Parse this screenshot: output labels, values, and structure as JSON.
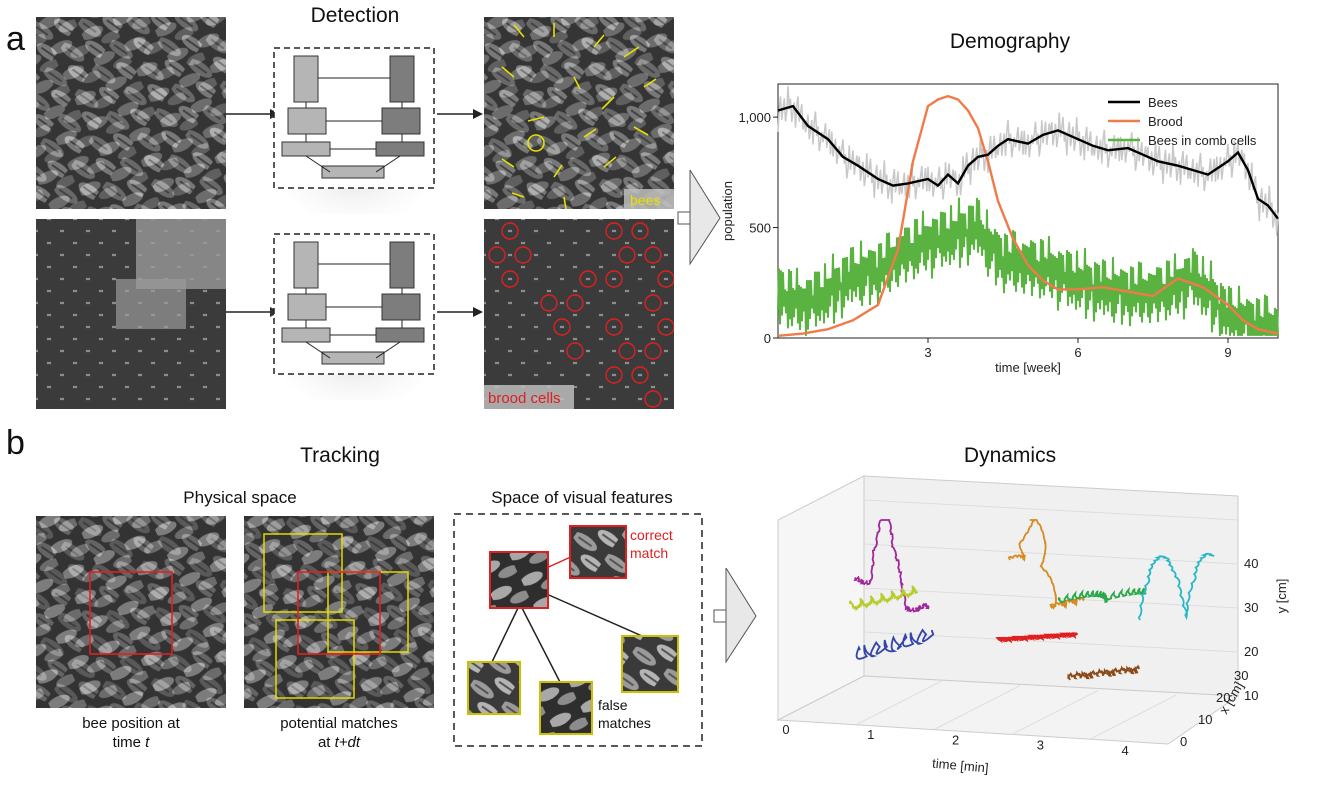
{
  "panel_a": {
    "letter": "a",
    "detection_title": "Detection",
    "demography_title": "Demography",
    "bees_label": "bees",
    "brood_label": "brood cells"
  },
  "panel_b": {
    "letter": "b",
    "tracking_title": "Tracking",
    "dynamics_title": "Dynamics",
    "physical_space": "Physical space",
    "visual_space": "Space of visual features",
    "caption_left_1": "bee position at",
    "caption_left_2": "time ",
    "caption_left_t": "t",
    "caption_mid_1": "potential matches",
    "caption_mid_2": "at ",
    "caption_mid_t": "t+dt",
    "correct_match_1": "correct",
    "correct_match_2": "match",
    "false_matches_1": "false",
    "false_matches_2": "matches"
  },
  "colors": {
    "bees": "#000000",
    "brood": "#f07a4a",
    "comb": "#5ab241",
    "raw": "#c8c8c8",
    "yellow": "#e8e000",
    "red": "#e02020"
  },
  "chart_data": [
    {
      "type": "line",
      "title": "Demography",
      "xlabel": "time [week]",
      "ylabel": "population",
      "xlim": [
        0,
        10
      ],
      "ylim": [
        0,
        1150
      ],
      "xticks": [
        "3",
        "6",
        "9"
      ],
      "yticks": [
        "0",
        "500",
        "1,000"
      ],
      "legend": "top-right",
      "series": [
        {
          "name": "Bees",
          "x": [
            0,
            0.3,
            0.6,
            1,
            1.3,
            1.6,
            2,
            2.3,
            2.6,
            3,
            3.2,
            3.4,
            3.6,
            3.8,
            4,
            4.2,
            4.4,
            4.6,
            5,
            5.3,
            5.6,
            6,
            6.3,
            6.6,
            7,
            7.3,
            7.6,
            8,
            8.3,
            8.6,
            9,
            9.2,
            9.4,
            9.6,
            9.8,
            10
          ],
          "y": [
            1030,
            1050,
            960,
            900,
            820,
            780,
            720,
            690,
            700,
            720,
            690,
            740,
            700,
            780,
            820,
            830,
            870,
            900,
            880,
            920,
            940,
            900,
            870,
            850,
            860,
            830,
            800,
            780,
            760,
            740,
            800,
            840,
            760,
            630,
            600,
            540
          ]
        },
        {
          "name": "Brood",
          "x": [
            0,
            0.5,
            1,
            1.5,
            2,
            2.4,
            2.7,
            3,
            3.2,
            3.4,
            3.6,
            3.8,
            4,
            4.2,
            4.4,
            4.7,
            5,
            5.3,
            5.6,
            6,
            6.5,
            7,
            7.5,
            8,
            8.5,
            9,
            9.3,
            9.6,
            10
          ],
          "y": [
            10,
            20,
            40,
            80,
            150,
            400,
            800,
            1050,
            1080,
            1095,
            1080,
            1030,
            950,
            800,
            620,
            450,
            330,
            260,
            220,
            220,
            230,
            210,
            190,
            270,
            230,
            150,
            80,
            40,
            20
          ]
        },
        {
          "name": "Bees in comb cells",
          "x": [
            0,
            0.5,
            1,
            1.5,
            2,
            2.5,
            3,
            3.5,
            4,
            4.2,
            4.5,
            5,
            5.5,
            6,
            6.5,
            7,
            7.5,
            8,
            8.3,
            8.6,
            9,
            9.5,
            10
          ],
          "y": [
            200,
            150,
            200,
            280,
            300,
            380,
            430,
            460,
            500,
            420,
            350,
            330,
            300,
            250,
            220,
            200,
            200,
            230,
            280,
            200,
            100,
            60,
            40
          ]
        }
      ]
    },
    {
      "type": "line",
      "title": "Dynamics",
      "xlabel": "time [min]",
      "ylabel": "y [cm]",
      "zlabel": "x [cm]",
      "xticks": [
        "0",
        "1",
        "2",
        "3",
        "4"
      ],
      "yticks": [
        "10",
        "20",
        "30",
        "40"
      ],
      "zticks": [
        "0",
        "10",
        "20",
        "30"
      ]
    }
  ]
}
